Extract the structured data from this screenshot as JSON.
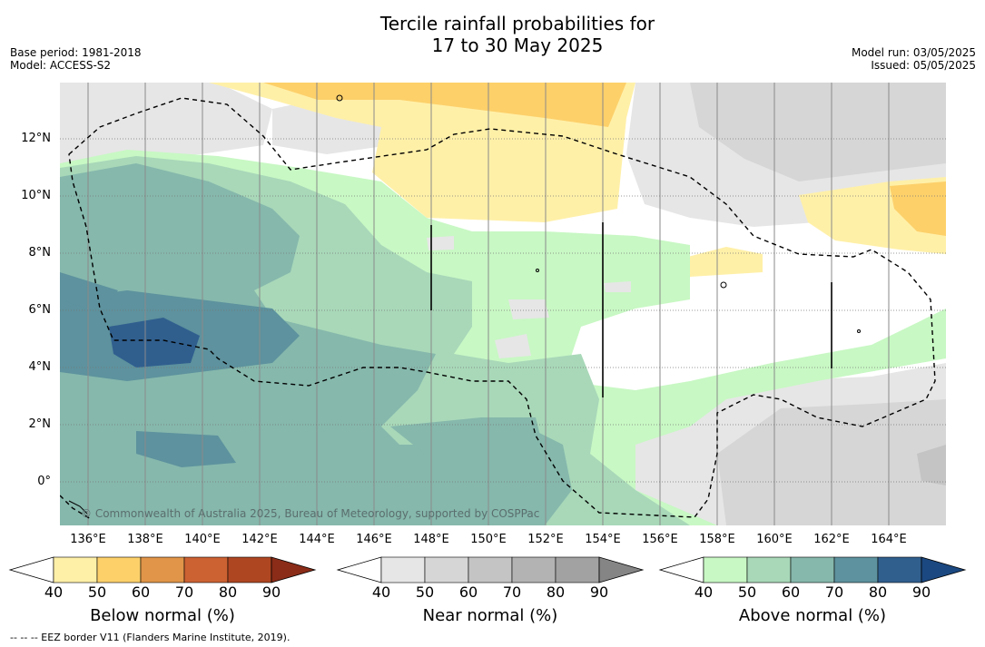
{
  "title": {
    "line1": "Tercile rainfall probabilities for",
    "line2": "17 to 30 May 2025"
  },
  "meta_left": {
    "base_period": "Base period: 1981-2018",
    "model": "Model: ACCESS-S2"
  },
  "meta_right": {
    "model_run": "Model run: 03/05/2025",
    "issued": "Issued: 05/05/2025"
  },
  "map": {
    "lat_labels": [
      "12°N",
      "10°N",
      "8°N",
      "6°N",
      "4°N",
      "2°N",
      "0°"
    ],
    "lon_labels": [
      "136°E",
      "138°E",
      "140°E",
      "142°E",
      "144°E",
      "146°E",
      "148°E",
      "150°E",
      "152°E",
      "154°E",
      "156°E",
      "158°E",
      "160°E",
      "162°E",
      "164°E"
    ],
    "copyright": "© Commonwealth of Australia 2025, Bureau of Meteorology, supported by COSPPac"
  },
  "colorbars": [
    {
      "label": "Below normal (%)",
      "ticks": [
        "40",
        "50",
        "60",
        "70",
        "80",
        "90"
      ],
      "colors": [
        "#fff0a8",
        "#fdd06a",
        "#e09548",
        "#cc6232",
        "#ae4622",
        "#8a2c18"
      ]
    },
    {
      "label": "Near normal (%)",
      "ticks": [
        "40",
        "50",
        "60",
        "70",
        "80",
        "90"
      ],
      "colors": [
        "#e6e6e6",
        "#d6d6d6",
        "#c4c4c4",
        "#b3b3b3",
        "#a2a2a2",
        "#858585"
      ]
    },
    {
      "label": "Above normal (%)",
      "ticks": [
        "40",
        "50",
        "60",
        "70",
        "80",
        "90"
      ],
      "colors": [
        "#c8f8c4",
        "#a8d8b8",
        "#86b8ac",
        "#5d929e",
        "#305f8e",
        "#1b4880"
      ]
    }
  ],
  "footnote": "--  --  -- EEZ border V11 (Flanders Marine Institute, 2019)."
}
